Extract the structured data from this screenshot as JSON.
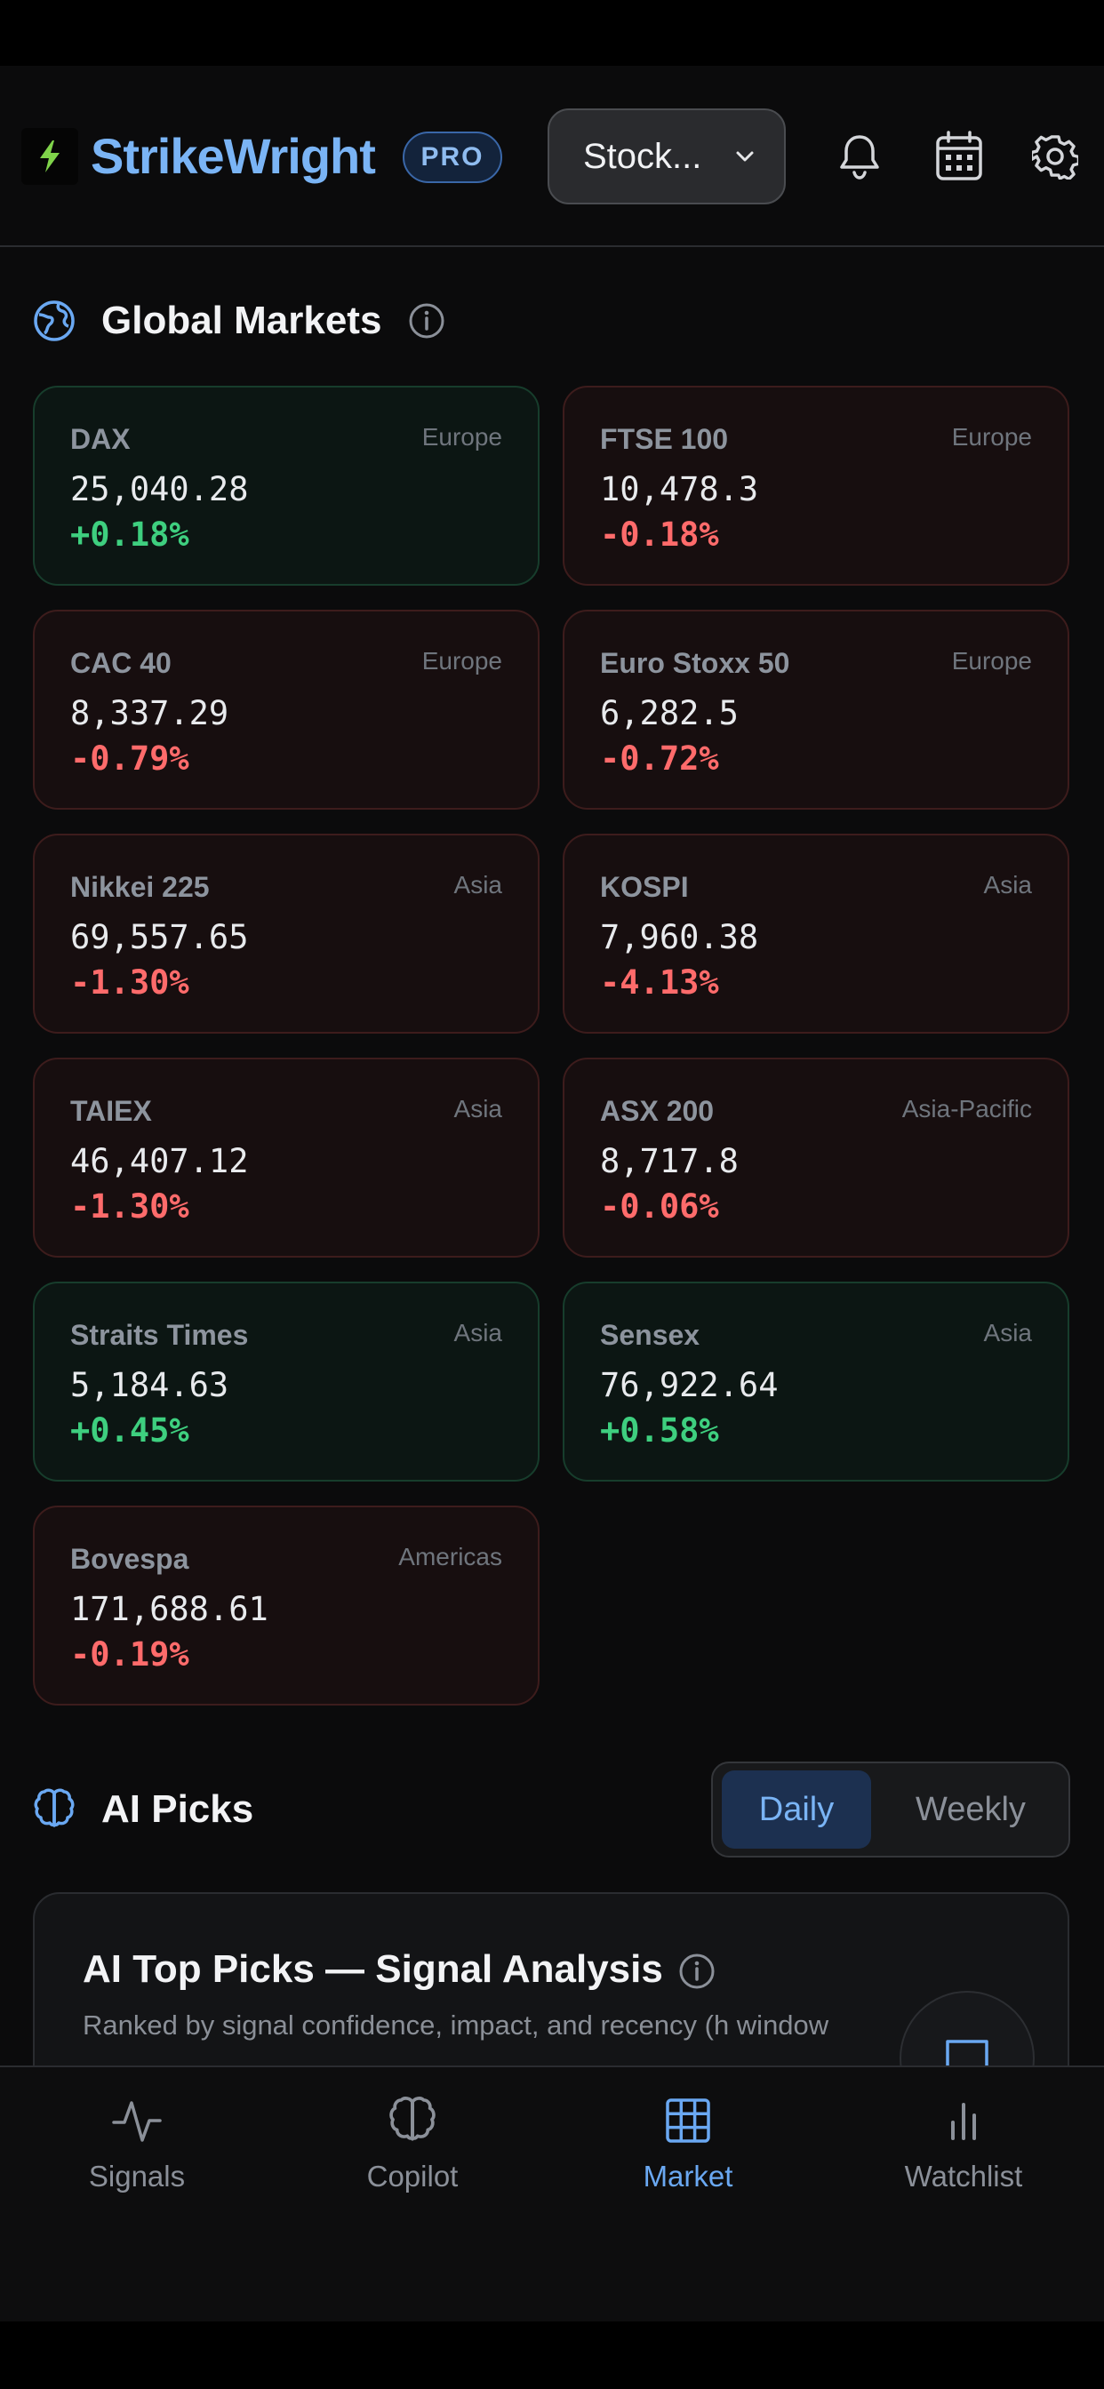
{
  "header": {
    "brand": "StrikeWright",
    "badge": "PRO",
    "dropdown_value": "Stock..."
  },
  "global_markets": {
    "title": "Global Markets",
    "cards": [
      {
        "name": "DAX",
        "region": "Europe",
        "value": "25,040.28",
        "change": "+0.18%",
        "trend": "up"
      },
      {
        "name": "FTSE 100",
        "region": "Europe",
        "value": "10,478.3",
        "change": "-0.18%",
        "trend": "down"
      },
      {
        "name": "CAC 40",
        "region": "Europe",
        "value": "8,337.29",
        "change": "-0.79%",
        "trend": "down"
      },
      {
        "name": "Euro Stoxx 50",
        "region": "Europe",
        "value": "6,282.5",
        "change": "-0.72%",
        "trend": "down"
      },
      {
        "name": "Nikkei 225",
        "region": "Asia",
        "value": "69,557.65",
        "change": "-1.30%",
        "trend": "down"
      },
      {
        "name": "KOSPI",
        "region": "Asia",
        "value": "7,960.38",
        "change": "-4.13%",
        "trend": "down"
      },
      {
        "name": "TAIEX",
        "region": "Asia",
        "value": "46,407.12",
        "change": "-1.30%",
        "trend": "down"
      },
      {
        "name": "ASX 200",
        "region": "Asia-Pacific",
        "value": "8,717.8",
        "change": "-0.06%",
        "trend": "down"
      },
      {
        "name": "Straits Times",
        "region": "Asia",
        "value": "5,184.63",
        "change": "+0.45%",
        "trend": "up"
      },
      {
        "name": "Sensex",
        "region": "Asia",
        "value": "76,922.64",
        "change": "+0.58%",
        "trend": "up"
      },
      {
        "name": "Bovespa",
        "region": "Americas",
        "value": "171,688.61",
        "change": "-0.19%",
        "trend": "down"
      }
    ]
  },
  "ai_picks": {
    "title": "AI Picks",
    "toggle": {
      "daily": "Daily",
      "weekly": "Weekly",
      "selected": "daily"
    },
    "card_title": "AI Top Picks — Signal Analysis",
    "card_subtitle": "Ranked by signal confidence, impact, and recency (h window"
  },
  "bottom_nav": [
    {
      "label": "Signals",
      "icon": "activity-icon"
    },
    {
      "label": "Copilot",
      "icon": "brain-icon"
    },
    {
      "label": "Market",
      "icon": "grid-icon",
      "active": true
    },
    {
      "label": "Watchlist",
      "icon": "bar-chart-icon"
    }
  ],
  "colors": {
    "accent": "#7ab4f5",
    "up": "#3ecf7f",
    "down": "#ff6b6b"
  }
}
